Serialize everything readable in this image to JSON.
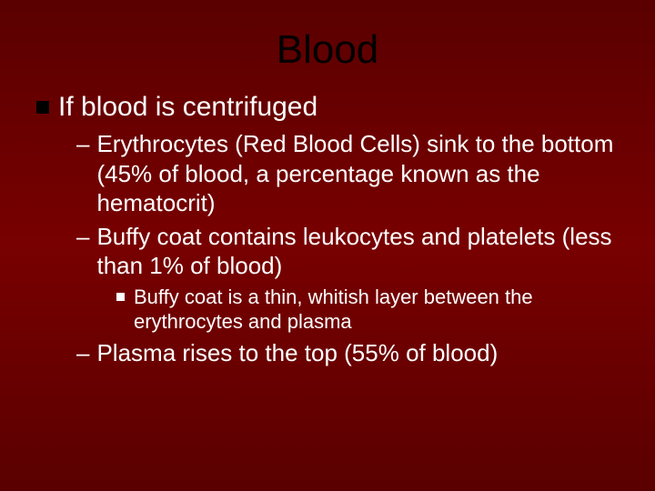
{
  "slide": {
    "background_gradient": [
      "#5a0000",
      "#780000",
      "#5a0000"
    ],
    "title": {
      "text": "Blood",
      "color": "#000000",
      "fontsize": 44
    },
    "bullets": {
      "l1": {
        "text": "If blood is centrifuged",
        "bullet_color": "#000000",
        "text_color": "#ffffff",
        "fontsize": 30
      },
      "l2a": {
        "text": "Erythrocytes (Red Blood Cells) sink to the bottom (45% of blood, a percentage known as the hematocrit)",
        "text_color": "#ffffff",
        "fontsize": 26
      },
      "l2b": {
        "text": "Buffy coat contains leukocytes and platelets (less than 1% of blood)",
        "text_color": "#ffffff",
        "fontsize": 26
      },
      "l3a": {
        "text": "Buffy coat is a thin, whitish layer between the erythrocytes and plasma",
        "bullet_color": "#ffffff",
        "text_color": "#ffffff",
        "fontsize": 22
      },
      "l2c": {
        "text": "Plasma rises to the top (55% of blood)",
        "text_color": "#ffffff",
        "fontsize": 26
      }
    }
  }
}
